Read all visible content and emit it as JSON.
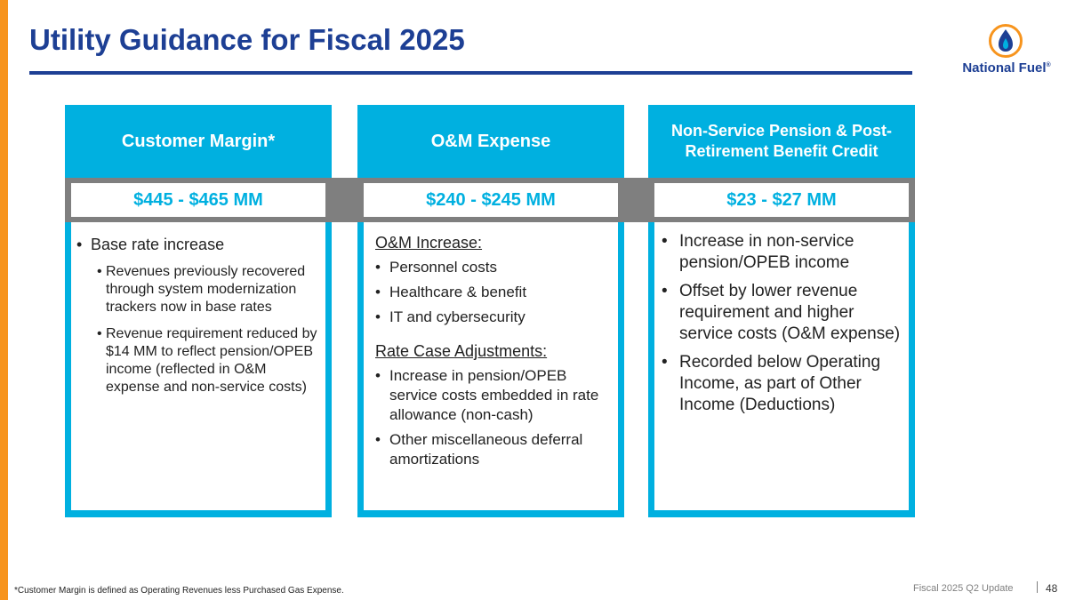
{
  "slide": {
    "title": "Utility Guidance for Fiscal 2025",
    "logo_text": "National Fuel",
    "logo_mark": "®",
    "footnote": "*Customer Margin is defined as Operating Revenues less Purchased Gas Expense.",
    "footer_label": "Fiscal 2025 Q2 Update",
    "page_number": "48"
  },
  "colors": {
    "title": "#1d3f94",
    "accent_bar": "#f7941d",
    "column": "#00b0e0",
    "band": "#7f7f7f"
  },
  "columns": [
    {
      "header": "Customer Margin*",
      "value": "$445 - $465 MM",
      "bullets": [
        {
          "text": "Base rate increase",
          "subs": [
            "Revenues previously recovered through system modernization trackers now in base rates",
            "Revenue requirement reduced by $14 MM to reflect pension/OPEB income (reflected in O&M expense and non-service costs)"
          ]
        }
      ]
    },
    {
      "header": "O&M Expense",
      "value": "$240 - $245 MM",
      "sections": [
        {
          "heading": "O&M Increase:",
          "items": [
            "Personnel costs",
            "Healthcare & benefit",
            "IT and cybersecurity"
          ]
        },
        {
          "heading": "Rate Case Adjustments:",
          "items": [
            "Increase in pension/OPEB service costs embedded in rate allowance (non-cash)",
            "Other miscellaneous deferral amortizations"
          ]
        }
      ]
    },
    {
      "header": "Non-Service Pension & Post-Retirement Benefit Credit",
      "value": "$23 - $27 MM",
      "bullets": [
        "Increase in non-service pension/OPEB income",
        "Offset by lower revenue requirement and higher service costs (O&M expense)",
        "Recorded below Operating Income, as part of Other Income (Deductions)"
      ]
    }
  ]
}
